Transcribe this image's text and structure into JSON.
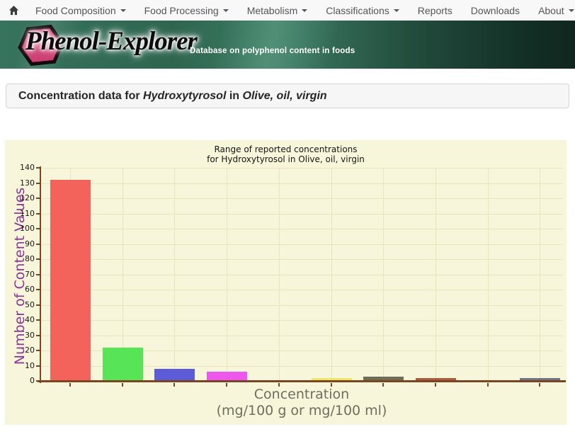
{
  "navbar": {
    "home_icon": "home",
    "items": [
      {
        "label": "Food Composition",
        "dropdown": true
      },
      {
        "label": "Food Processing",
        "dropdown": true
      },
      {
        "label": "Metabolism",
        "dropdown": true
      },
      {
        "label": "Classifications",
        "dropdown": true
      },
      {
        "label": "Reports",
        "dropdown": false
      },
      {
        "label": "Downloads",
        "dropdown": false
      },
      {
        "label": "About",
        "dropdown": true
      }
    ]
  },
  "banner": {
    "logo_text": "Phenol-Explorer",
    "tagline": "Database on polyphenol content in foods",
    "hexagon_color": "#cd3f73",
    "banner_green_dark": "#132e25",
    "banner_green_light": "#3c7c64"
  },
  "heading": {
    "prefix": "Concentration data for ",
    "compound": "Hydroxytyrosol",
    "connector": " in ",
    "food": "Olive, oil, virgin"
  },
  "chart_data": {
    "type": "bar",
    "title_line1": "Range of reported concentrations",
    "title_line2": "for Hydroxytyrosol in Olive, oil, virgin",
    "ylabel": "Number of Content Values",
    "xlabel_line1": "Concentration",
    "xlabel_line2": "(mg/100 g or mg/100 ml)",
    "ylim": [
      0,
      140
    ],
    "ytick_step": 10,
    "n_bins": 10,
    "x_tick_labels": [
      "",
      "",
      "",
      "",
      "",
      "",
      "",
      "",
      "",
      ""
    ],
    "values": [
      132,
      22,
      8,
      6,
      0,
      2,
      3,
      2,
      0,
      2
    ],
    "bar_colors": [
      "#f4635b",
      "#57e457",
      "#5c5cd8",
      "#ee57ee",
      "none",
      "#efe566",
      "#6e6e55",
      "#a95c41",
      "none",
      "#6f7489"
    ],
    "plot_bg": "#f8f6da",
    "axis_color": "#7a4522",
    "grid": true,
    "gridline_color": "#e8e4bd",
    "ylabel_color": "#8e3494",
    "xlabel_color": "#6d6d60",
    "legend": null
  }
}
